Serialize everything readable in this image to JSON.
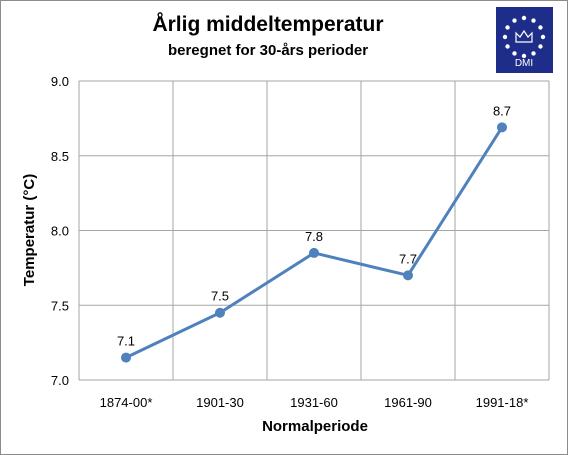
{
  "chart_data": {
    "type": "line",
    "title": "Årlig middeltemperatur",
    "subtitle": "beregnet for 30-års perioder",
    "xlabel": "Normalperiode",
    "ylabel": "Temperatur (°C)",
    "categories": [
      "1874-00*",
      "1901-30",
      "1931-60",
      "1961-90",
      "1991-18*"
    ],
    "values": [
      7.15,
      7.45,
      7.85,
      7.7,
      8.69
    ],
    "data_labels": [
      "7.1",
      "7.5",
      "7.8",
      "7.7",
      "8.7"
    ],
    "ylim": [
      7.0,
      9.0
    ],
    "yticks": [
      "7.0",
      "7.5",
      "8.0",
      "8.5",
      "9.0"
    ],
    "grid": true,
    "legend": "none",
    "series_color": "#4f81bd",
    "grid_color": "#a6a6a6"
  },
  "logo": {
    "text": "DMI",
    "icon": "crown-stars-icon",
    "background": "#1f2d8a"
  }
}
